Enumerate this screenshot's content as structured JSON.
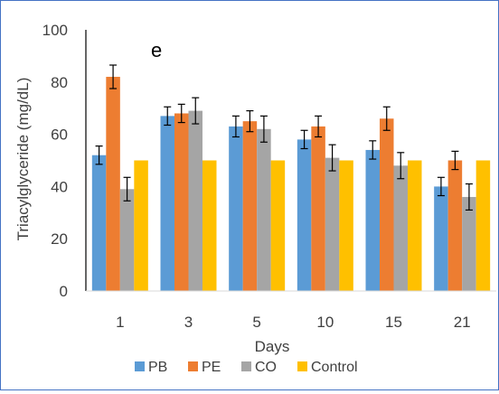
{
  "chart_data": {
    "type": "bar",
    "panel_label": "e",
    "xlabel": "Days",
    "ylabel": "Triacylglyceride (mg/dL)",
    "categories": [
      "1",
      "3",
      "5",
      "10",
      "15",
      "21"
    ],
    "ylim": [
      0,
      100
    ],
    "yticks": [
      0,
      20,
      40,
      60,
      80,
      100
    ],
    "grid": false,
    "legend_position": "bottom",
    "series": [
      {
        "name": "PB",
        "color": "#5b9bd5",
        "values": [
          52,
          67,
          63,
          58,
          54,
          40
        ],
        "errors": [
          3.5,
          3.5,
          4,
          3.5,
          3.5,
          3.5
        ]
      },
      {
        "name": "PE",
        "color": "#ed7d31",
        "values": [
          82,
          68,
          65,
          63,
          66,
          50
        ],
        "errors": [
          4.5,
          3.5,
          4,
          4,
          4.5,
          3.5
        ]
      },
      {
        "name": "CO",
        "color": "#a5a5a5",
        "values": [
          39,
          69,
          62,
          51,
          48,
          36
        ],
        "errors": [
          4.5,
          5,
          5,
          5,
          5,
          5
        ]
      },
      {
        "name": "Control",
        "color": "#ffc000",
        "values": [
          50,
          50,
          50,
          50,
          50,
          50
        ],
        "errors": [
          0,
          0,
          0,
          0,
          0,
          0
        ]
      }
    ]
  }
}
